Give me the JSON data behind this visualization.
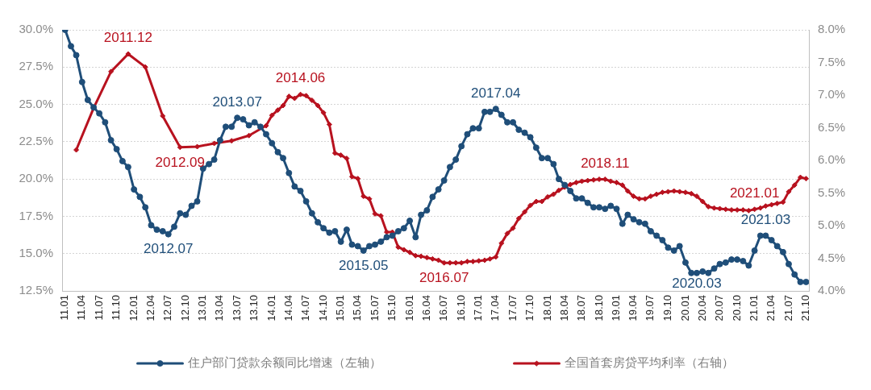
{
  "chart_data": {
    "type": "line",
    "x": [
      "2011-01",
      "2011-02",
      "2011-03",
      "2011-04",
      "2011-05",
      "2011-06",
      "2011-07",
      "2011-08",
      "2011-09",
      "2011-10",
      "2011-11",
      "2011-12",
      "2012-01",
      "2012-02",
      "2012-03",
      "2012-04",
      "2012-05",
      "2012-06",
      "2012-07",
      "2012-08",
      "2012-09",
      "2012-10",
      "2012-11",
      "2012-12",
      "2013-01",
      "2013-02",
      "2013-03",
      "2013-04",
      "2013-05",
      "2013-06",
      "2013-07",
      "2013-08",
      "2013-09",
      "2013-10",
      "2013-11",
      "2013-12",
      "2014-01",
      "2014-02",
      "2014-03",
      "2014-04",
      "2014-05",
      "2014-06",
      "2014-07",
      "2014-08",
      "2014-09",
      "2014-10",
      "2014-11",
      "2014-12",
      "2015-01",
      "2015-02",
      "2015-03",
      "2015-04",
      "2015-05",
      "2015-06",
      "2015-07",
      "2015-08",
      "2015-09",
      "2015-10",
      "2015-11",
      "2015-12",
      "2016-01",
      "2016-02",
      "2016-03",
      "2016-04",
      "2016-05",
      "2016-06",
      "2016-07",
      "2016-08",
      "2016-09",
      "2016-10",
      "2016-11",
      "2016-12",
      "2017-01",
      "2017-02",
      "2017-03",
      "2017-04",
      "2017-05",
      "2017-06",
      "2017-07",
      "2017-08",
      "2017-09",
      "2017-10",
      "2017-11",
      "2017-12",
      "2018-01",
      "2018-02",
      "2018-03",
      "2018-04",
      "2018-05",
      "2018-06",
      "2018-07",
      "2018-08",
      "2018-09",
      "2018-10",
      "2018-11",
      "2018-12",
      "2019-01",
      "2019-02",
      "2019-03",
      "2019-04",
      "2019-05",
      "2019-06",
      "2019-07",
      "2019-08",
      "2019-09",
      "2019-10",
      "2019-11",
      "2019-12",
      "2020-01",
      "2020-02",
      "2020-03",
      "2020-04",
      "2020-05",
      "2020-06",
      "2020-07",
      "2020-08",
      "2020-09",
      "2020-10",
      "2020-11",
      "2020-12",
      "2021-01",
      "2021-02",
      "2021-03",
      "2021-04",
      "2021-05",
      "2021-06",
      "2021-07",
      "2021-08",
      "2021-09",
      "2021-10"
    ],
    "series": [
      {
        "name": "住户部门贷款余额同比增速（左轴）",
        "color": "#1f4e79",
        "marker": "circle",
        "values": [
          30.0,
          28.9,
          28.3,
          26.5,
          25.3,
          24.8,
          24.4,
          23.8,
          22.6,
          22.0,
          21.2,
          20.8,
          19.3,
          18.8,
          18.1,
          16.9,
          16.6,
          16.5,
          16.3,
          16.8,
          17.7,
          17.6,
          18.2,
          18.5,
          20.7,
          21.0,
          21.3,
          22.6,
          23.5,
          23.5,
          24.1,
          24.0,
          23.6,
          23.8,
          23.5,
          23.0,
          22.4,
          21.8,
          21.4,
          20.4,
          19.5,
          19.2,
          18.5,
          17.7,
          17.1,
          16.7,
          16.4,
          16.5,
          15.8,
          16.6,
          15.6,
          15.5,
          15.2,
          15.5,
          15.6,
          15.8,
          16.1,
          16.2,
          16.5,
          16.7,
          17.2,
          16.1,
          17.6,
          17.9,
          18.8,
          19.3,
          19.9,
          20.8,
          21.3,
          22.2,
          23.0,
          23.4,
          23.4,
          24.5,
          24.5,
          24.7,
          24.3,
          23.8,
          23.8,
          23.3,
          23.1,
          22.8,
          22.1,
          21.4,
          21.4,
          21.0,
          20.0,
          19.6,
          19.2,
          18.7,
          18.7,
          18.4,
          18.1,
          18.1,
          18.0,
          18.2,
          18.0,
          17.0,
          17.6,
          17.3,
          17.1,
          17.0,
          16.5,
          16.2,
          15.9,
          15.4,
          15.2,
          15.5,
          14.4,
          13.7,
          13.7,
          13.8,
          13.7,
          14.0,
          14.3,
          14.4,
          14.6,
          14.6,
          14.5,
          14.2,
          15.2,
          16.2,
          16.2,
          15.9,
          15.5,
          15.1,
          14.3,
          13.6,
          13.1,
          13.1
        ]
      },
      {
        "name": "全国首套房贷平均利率（右轴）",
        "color": "#b8121f",
        "marker": "diamond",
        "axis": "y2",
        "x": [
          "2011-03",
          "2011-06",
          "2011-09",
          "2011-12",
          "2012-03",
          "2012-06",
          "2012-09",
          "2012-12",
          "2013-03",
          "2013-06",
          "2013-09",
          "2013-12",
          "2014-01",
          "2014-02",
          "2014-03",
          "2014-04",
          "2014-05",
          "2014-06",
          "2014-07",
          "2014-08",
          "2014-09",
          "2014-10",
          "2014-11",
          "2014-12",
          "2015-01",
          "2015-02",
          "2015-03",
          "2015-04",
          "2015-05",
          "2015-06",
          "2015-07",
          "2015-08",
          "2015-09",
          "2015-10",
          "2015-11",
          "2015-12",
          "2016-01",
          "2016-02",
          "2016-03",
          "2016-04",
          "2016-05",
          "2016-06",
          "2016-07",
          "2016-08",
          "2016-09",
          "2016-10",
          "2016-11",
          "2016-12",
          "2017-01",
          "2017-02",
          "2017-03",
          "2017-04",
          "2017-05",
          "2017-06",
          "2017-07",
          "2017-08",
          "2017-09",
          "2017-10",
          "2017-11",
          "2017-12",
          "2018-01",
          "2018-02",
          "2018-03",
          "2018-04",
          "2018-05",
          "2018-06",
          "2018-07",
          "2018-08",
          "2018-09",
          "2018-10",
          "2018-11",
          "2018-12",
          "2019-01",
          "2019-02",
          "2019-03",
          "2019-04",
          "2019-05",
          "2019-06",
          "2019-07",
          "2019-08",
          "2019-09",
          "2019-10",
          "2019-11",
          "2019-12",
          "2020-01",
          "2020-02",
          "2020-03",
          "2020-04",
          "2020-05",
          "2020-06",
          "2020-07",
          "2020-08",
          "2020-09",
          "2020-10",
          "2020-11",
          "2020-12",
          "2021-01",
          "2021-02",
          "2021-03",
          "2021-04",
          "2021-05",
          "2021-06",
          "2021-07",
          "2021-08",
          "2021-09",
          "2021-10"
        ],
        "values": [
          6.16,
          6.8,
          7.36,
          7.63,
          7.43,
          6.68,
          6.2,
          6.21,
          6.26,
          6.3,
          6.38,
          6.53,
          6.69,
          6.77,
          6.84,
          6.98,
          6.95,
          7.01,
          6.99,
          6.92,
          6.84,
          6.73,
          6.55,
          6.11,
          6.08,
          6.03,
          5.75,
          5.72,
          5.45,
          5.41,
          5.18,
          5.15,
          4.9,
          4.9,
          4.67,
          4.63,
          4.59,
          4.54,
          4.53,
          4.51,
          4.49,
          4.47,
          4.43,
          4.43,
          4.43,
          4.43,
          4.45,
          4.45,
          4.46,
          4.47,
          4.49,
          4.52,
          4.73,
          4.88,
          4.96,
          5.11,
          5.21,
          5.31,
          5.37,
          5.37,
          5.44,
          5.48,
          5.54,
          5.59,
          5.63,
          5.66,
          5.68,
          5.69,
          5.7,
          5.71,
          5.71,
          5.68,
          5.66,
          5.62,
          5.53,
          5.45,
          5.41,
          5.41,
          5.45,
          5.48,
          5.51,
          5.52,
          5.53,
          5.52,
          5.51,
          5.49,
          5.45,
          5.37,
          5.29,
          5.27,
          5.26,
          5.25,
          5.24,
          5.24,
          5.24,
          5.23,
          5.25,
          5.27,
          5.3,
          5.32,
          5.34,
          5.36,
          5.52,
          5.62,
          5.74,
          5.72
        ]
      }
    ],
    "xlim": [
      "2010-12-16",
      "2021-10-16"
    ],
    "xticks": [
      {
        "value": "2011-01",
        "label": "11.01"
      },
      {
        "value": "2011-04",
        "label": "11.04"
      },
      {
        "value": "2011-07",
        "label": "11.07"
      },
      {
        "value": "2011-10",
        "label": "11.10"
      },
      {
        "value": "2012-01",
        "label": "12.01"
      },
      {
        "value": "2012-04",
        "label": "12.04"
      },
      {
        "value": "2012-07",
        "label": "12.07"
      },
      {
        "value": "2012-10",
        "label": "12.10"
      },
      {
        "value": "2013-01",
        "label": "13.01"
      },
      {
        "value": "2013-04",
        "label": "13.04"
      },
      {
        "value": "2013-07",
        "label": "13.07"
      },
      {
        "value": "2013-10",
        "label": "13.10"
      },
      {
        "value": "2014-01",
        "label": "14.01"
      },
      {
        "value": "2014-04",
        "label": "14.04"
      },
      {
        "value": "2014-07",
        "label": "14.07"
      },
      {
        "value": "2014-10",
        "label": "14.10"
      },
      {
        "value": "2015-01",
        "label": "15.01"
      },
      {
        "value": "2015-04",
        "label": "15.04"
      },
      {
        "value": "2015-07",
        "label": "15.07"
      },
      {
        "value": "2015-10",
        "label": "15.10"
      },
      {
        "value": "2016-01",
        "label": "16.01"
      },
      {
        "value": "2016-04",
        "label": "16.04"
      },
      {
        "value": "2016-07",
        "label": "16.07"
      },
      {
        "value": "2016-10",
        "label": "16.10"
      },
      {
        "value": "2017-01",
        "label": "17.01"
      },
      {
        "value": "2017-04",
        "label": "17.04"
      },
      {
        "value": "2017-07",
        "label": "17.07"
      },
      {
        "value": "2017-10",
        "label": "17.10"
      },
      {
        "value": "2018-01",
        "label": "18.01"
      },
      {
        "value": "2018-04",
        "label": "18.04"
      },
      {
        "value": "2018-07",
        "label": "18.07"
      },
      {
        "value": "2018-10",
        "label": "18.10"
      },
      {
        "value": "2019-01",
        "label": "19.01"
      },
      {
        "value": "2019-04",
        "label": "19.04"
      },
      {
        "value": "2019-07",
        "label": "19.07"
      },
      {
        "value": "2019-10",
        "label": "19.10"
      },
      {
        "value": "2020-01",
        "label": "20.01"
      },
      {
        "value": "2020-04",
        "label": "20.04"
      },
      {
        "value": "2020-07",
        "label": "20.07"
      },
      {
        "value": "2020-10",
        "label": "20.10"
      },
      {
        "value": "2021-01",
        "label": "21.01"
      },
      {
        "value": "2021-04",
        "label": "21.04"
      },
      {
        "value": "2021-07",
        "label": "21.07"
      },
      {
        "value": "2021-10",
        "label": "21.10"
      }
    ],
    "ylim": [
      12.5,
      30
    ],
    "yticks": [
      {
        "value": 12.5,
        "label": "12.5%"
      },
      {
        "value": 15,
        "label": "15.0%"
      },
      {
        "value": 17.5,
        "label": "17.5%"
      },
      {
        "value": 20,
        "label": "20.0%"
      },
      {
        "value": 22.5,
        "label": "22.5%"
      },
      {
        "value": 25,
        "label": "25.0%"
      },
      {
        "value": 27.5,
        "label": "27.5%"
      },
      {
        "value": 30,
        "label": "30.0%"
      }
    ],
    "y2lim": [
      4,
      8
    ],
    "y2ticks": [
      {
        "value": 4,
        "label": "4.0%"
      },
      {
        "value": 4.5,
        "label": "4.5%"
      },
      {
        "value": 5,
        "label": "5.0%"
      },
      {
        "value": 5.5,
        "label": "5.5%"
      },
      {
        "value": 6,
        "label": "6.0%"
      },
      {
        "value": 6.5,
        "label": "6.5%"
      },
      {
        "value": 7,
        "label": "7.0%"
      },
      {
        "value": 7.5,
        "label": "7.5%"
      },
      {
        "value": 8,
        "label": "8.0%"
      }
    ],
    "grid": "y",
    "legend": "bottom",
    "annotations": [
      {
        "text": "2011.12",
        "x": "2011-12",
        "y": 28.4
      },
      {
        "text": "2012.09",
        "x": "2012-09",
        "y": 22.1
      },
      {
        "text": "2012.07",
        "x": "2012-07",
        "y": 16.3
      },
      {
        "text": "2013.07",
        "x": "2013-07",
        "y": 24.1
      },
      {
        "text": "2014.06",
        "x": "2014-06",
        "y": 25.7
      },
      {
        "text": "2015.05",
        "x": "2015-05",
        "y": 15.2
      },
      {
        "text": "2016.07",
        "x": "2016-07",
        "y": 14.4
      },
      {
        "text": "2017.04",
        "x": "2017-04",
        "y": 24.7
      },
      {
        "text": "2018.11",
        "x": "2018-11",
        "y": 20.0
      },
      {
        "text": "2020.03",
        "x": "2020-03",
        "y": 13.7
      },
      {
        "text": "2021.01",
        "x": "2021-01",
        "y": 18.0
      },
      {
        "text": "2021.03",
        "x": "2021-03",
        "y": 16.2
      }
    ]
  }
}
